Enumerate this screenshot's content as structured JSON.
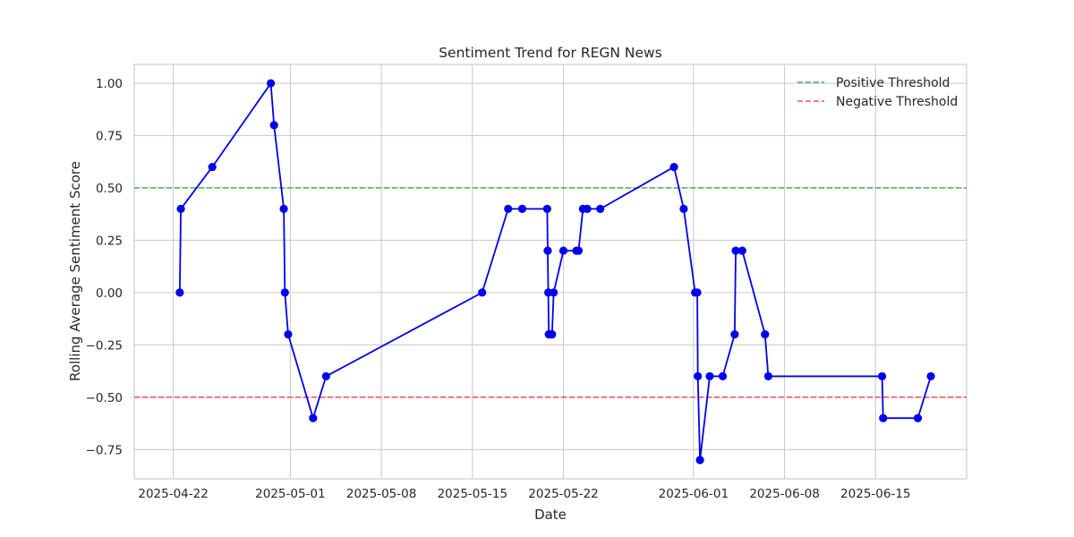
{
  "chart_data": {
    "type": "line",
    "title": "Sentiment Trend for REGN News",
    "xlabel": "Date",
    "ylabel": "Rolling Average Sentiment Score",
    "xlim": [
      "2025-04-19",
      "2025-06-22"
    ],
    "ylim": [
      -0.89,
      1.09
    ],
    "x_ticks": [
      "2025-04-22",
      "2025-05-01",
      "2025-05-08",
      "2025-05-15",
      "2025-05-22",
      "2025-06-01",
      "2025-06-08",
      "2025-06-15"
    ],
    "x_tick_labels": [
      "2025-04-22",
      "2025-05-01",
      "2025-05-08",
      "2025-05-15",
      "2025-05-22",
      "2025-06-01",
      "2025-06-08",
      "2025-06-15"
    ],
    "y_ticks": [
      -0.75,
      -0.5,
      -0.25,
      0.0,
      0.25,
      0.5,
      0.75,
      1.0
    ],
    "y_tick_labels": [
      "−0.75",
      "−0.50",
      "−0.25",
      "0.00",
      "0.25",
      "0.50",
      "0.75",
      "1.00"
    ],
    "grid": true,
    "legend_position": "top-right",
    "series": [
      {
        "color": "#0000ee",
        "marker": "circle",
        "points": [
          [
            "2025-04-22T12:00",
            0.0
          ],
          [
            "2025-04-22T14:00",
            0.4
          ],
          [
            "2025-04-25T00:00",
            0.6
          ],
          [
            "2025-04-29T12:00",
            1.0
          ],
          [
            "2025-04-29T18:00",
            0.8
          ],
          [
            "2025-04-30T12:00",
            0.4
          ],
          [
            "2025-04-30T14:00",
            0.0
          ],
          [
            "2025-04-30T20:00",
            -0.2
          ],
          [
            "2025-05-02T18:00",
            -0.6
          ],
          [
            "2025-05-03T18:00",
            -0.4
          ],
          [
            "2025-05-15T18:00",
            0.0
          ],
          [
            "2025-05-17T18:00",
            0.4
          ],
          [
            "2025-05-18T20:00",
            0.4
          ],
          [
            "2025-05-20T18:00",
            0.4
          ],
          [
            "2025-05-20T19:00",
            0.2
          ],
          [
            "2025-05-20T20:00",
            0.0
          ],
          [
            "2025-05-20T21:00",
            -0.2
          ],
          [
            "2025-05-21T00:00",
            -0.2
          ],
          [
            "2025-05-21T03:00",
            -0.2
          ],
          [
            "2025-05-21T06:00",
            0.0
          ],
          [
            "2025-05-22T00:00",
            0.2
          ],
          [
            "2025-05-23T00:00",
            0.2
          ],
          [
            "2025-05-23T04:00",
            0.2
          ],
          [
            "2025-05-23T12:00",
            0.4
          ],
          [
            "2025-05-23T20:00",
            0.4
          ],
          [
            "2025-05-24T20:00",
            0.4
          ],
          [
            "2025-05-30T12:00",
            0.6
          ],
          [
            "2025-05-31T06:00",
            0.4
          ],
          [
            "2025-06-01T03:00",
            0.0
          ],
          [
            "2025-06-01T07:00",
            0.0
          ],
          [
            "2025-06-01T08:00",
            -0.4
          ],
          [
            "2025-06-01T12:00",
            -0.8
          ],
          [
            "2025-06-02T06:00",
            -0.4
          ],
          [
            "2025-06-03T06:00",
            -0.4
          ],
          [
            "2025-06-04T04:00",
            -0.2
          ],
          [
            "2025-06-04T06:00",
            0.2
          ],
          [
            "2025-06-04T18:00",
            0.2
          ],
          [
            "2025-06-06T12:00",
            -0.2
          ],
          [
            "2025-06-06T18:00",
            -0.4
          ],
          [
            "2025-06-15T12:00",
            -0.4
          ],
          [
            "2025-06-15T14:00",
            -0.6
          ],
          [
            "2025-06-18T06:00",
            -0.6
          ],
          [
            "2025-06-19T06:00",
            -0.4
          ]
        ]
      }
    ],
    "reference_lines": [
      {
        "name": "Positive Threshold",
        "y": 0.5,
        "color": "#4caf50",
        "style": "dashed"
      },
      {
        "name": "Negative Threshold",
        "y": -0.5,
        "color": "#f05050",
        "style": "dashed"
      }
    ]
  }
}
